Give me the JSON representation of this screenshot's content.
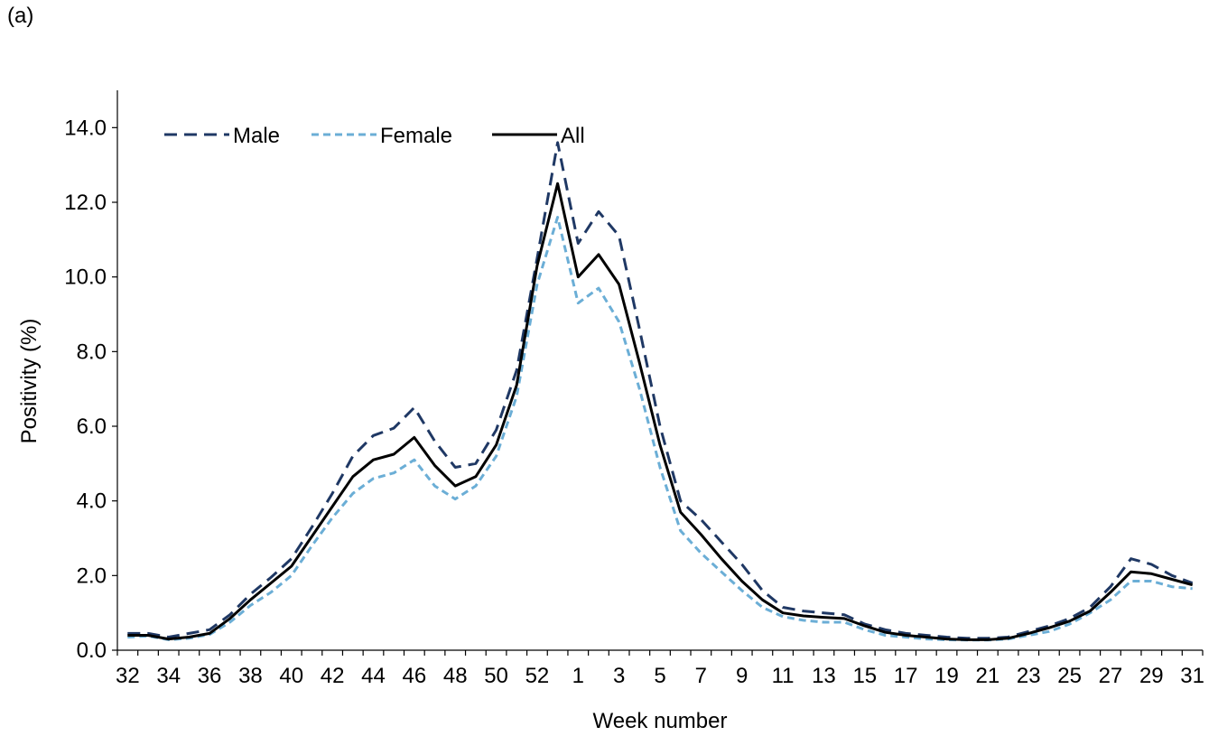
{
  "panel_label": "(a)",
  "chart_data": {
    "type": "line",
    "xlabel": "Week number",
    "ylabel": "Positivity (%)",
    "ylim": [
      0,
      14
    ],
    "yticks": [
      "0.0",
      "2.0",
      "4.0",
      "6.0",
      "8.0",
      "10.0",
      "12.0",
      "14.0"
    ],
    "legend_position": "top-left",
    "categories": [
      "32",
      "33",
      "34",
      "35",
      "36",
      "37",
      "38",
      "39",
      "40",
      "41",
      "42",
      "43",
      "44",
      "45",
      "46",
      "47",
      "48",
      "49",
      "50",
      "51",
      "52",
      "53",
      "1",
      "2",
      "3",
      "4",
      "5",
      "6",
      "7",
      "8",
      "9",
      "10",
      "11",
      "12",
      "13",
      "14",
      "15",
      "16",
      "17",
      "18",
      "19",
      "20",
      "21",
      "22",
      "23",
      "24",
      "25",
      "26",
      "27",
      "28",
      "29",
      "30",
      "31"
    ],
    "x_tick_labels": [
      "32",
      "34",
      "36",
      "38",
      "40",
      "42",
      "44",
      "46",
      "48",
      "50",
      "52",
      "1",
      "3",
      "5",
      "7",
      "9",
      "11",
      "13",
      "15",
      "17",
      "19",
      "21",
      "23",
      "25",
      "27",
      "29",
      "31"
    ],
    "series": [
      {
        "name": "Male",
        "color": "#1f3864",
        "style": "dashed",
        "values": [
          0.45,
          0.45,
          0.35,
          0.45,
          0.55,
          0.95,
          1.5,
          1.95,
          2.45,
          3.3,
          4.2,
          5.2,
          5.75,
          5.95,
          6.5,
          5.6,
          4.9,
          5.0,
          5.9,
          7.5,
          10.5,
          13.6,
          10.9,
          11.75,
          11.1,
          8.6,
          6.0,
          4.0,
          3.5,
          2.9,
          2.3,
          1.6,
          1.15,
          1.05,
          1.0,
          0.95,
          0.7,
          0.55,
          0.45,
          0.4,
          0.35,
          0.32,
          0.32,
          0.35,
          0.5,
          0.65,
          0.85,
          1.15,
          1.7,
          2.45,
          2.3,
          2.0,
          1.8
        ]
      },
      {
        "name": "Female",
        "color": "#6baed6",
        "style": "dotted",
        "values": [
          0.35,
          0.38,
          0.28,
          0.32,
          0.42,
          0.75,
          1.2,
          1.55,
          2.0,
          2.8,
          3.55,
          4.2,
          4.6,
          4.75,
          5.1,
          4.4,
          4.05,
          4.4,
          5.2,
          6.8,
          9.8,
          11.6,
          9.3,
          9.7,
          8.8,
          7.0,
          4.9,
          3.2,
          2.6,
          2.1,
          1.6,
          1.15,
          0.9,
          0.8,
          0.75,
          0.75,
          0.55,
          0.4,
          0.35,
          0.3,
          0.28,
          0.27,
          0.27,
          0.3,
          0.4,
          0.5,
          0.7,
          1.0,
          1.35,
          1.85,
          1.85,
          1.7,
          1.65
        ]
      },
      {
        "name": "All",
        "color": "#000000",
        "style": "solid",
        "values": [
          0.4,
          0.4,
          0.3,
          0.35,
          0.45,
          0.85,
          1.35,
          1.8,
          2.25,
          3.05,
          3.85,
          4.65,
          5.1,
          5.25,
          5.7,
          4.95,
          4.4,
          4.65,
          5.5,
          7.1,
          10.3,
          12.5,
          10.0,
          10.6,
          9.8,
          7.7,
          5.5,
          3.7,
          3.1,
          2.45,
          1.85,
          1.35,
          1.0,
          0.92,
          0.88,
          0.85,
          0.65,
          0.48,
          0.4,
          0.35,
          0.3,
          0.28,
          0.28,
          0.32,
          0.45,
          0.6,
          0.78,
          1.05,
          1.55,
          2.1,
          2.05,
          1.9,
          1.75
        ]
      }
    ]
  }
}
